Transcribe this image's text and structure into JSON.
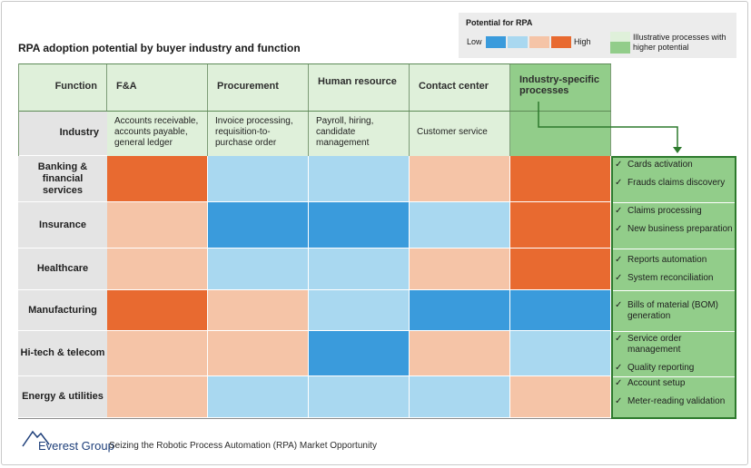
{
  "title": "RPA adoption potential by buyer industry and function",
  "legend": {
    "title": "Potential for RPA",
    "low_label": "Low",
    "high_label": "High",
    "illustrative_label": "Illustrative processes with higher potential",
    "scale_colors": [
      "#3a9bdc",
      "#a9d8f0",
      "#f5c4a7",
      "#e86a30"
    ]
  },
  "header": {
    "function_label": "Function",
    "industry_label": "Industry"
  },
  "chart_data": {
    "type": "heatmap",
    "title": "RPA adoption potential by buyer industry and function",
    "levels": [
      "Low",
      "Medium-low",
      "Medium-high",
      "High"
    ],
    "columns": [
      {
        "name": "F&A",
        "examples": "Accounts receivable, accounts payable, general ledger"
      },
      {
        "name": "Procurement",
        "examples": "Invoice processing, requisition-to-purchase order"
      },
      {
        "name": "Human resource",
        "examples": "Payroll, hiring, candidate management"
      },
      {
        "name": "Contact center",
        "examples": "Customer service"
      },
      {
        "name": "Industry-specific processes",
        "examples": ""
      }
    ],
    "rows": [
      {
        "name": "Banking & financial services",
        "values": [
          4,
          2,
          2,
          3,
          4
        ],
        "processes": [
          "Cards activation",
          "Frauds claims discovery"
        ]
      },
      {
        "name": "Insurance",
        "values": [
          3,
          1,
          1,
          2,
          4
        ],
        "processes": [
          "Claims processing",
          "New business preparation"
        ]
      },
      {
        "name": "Healthcare",
        "values": [
          3,
          2,
          2,
          3,
          4
        ],
        "processes": [
          "Reports automation",
          "System reconciliation"
        ]
      },
      {
        "name": "Manufacturing",
        "values": [
          4,
          3,
          2,
          1,
          1
        ],
        "processes": [
          "Bills of material (BOM) generation"
        ]
      },
      {
        "name": "Hi-tech & telecom",
        "values": [
          3,
          3,
          1,
          3,
          2
        ],
        "processes": [
          "Service order management",
          "Quality reporting"
        ]
      },
      {
        "name": "Energy & utilities",
        "values": [
          3,
          2,
          2,
          2,
          3
        ],
        "processes": [
          "Account setup",
          "Meter-reading validation"
        ]
      }
    ]
  },
  "footer": {
    "brand": "Everest Group",
    "text": "Seizing the Robotic Process Automation (RPA) Market Opportunity"
  }
}
